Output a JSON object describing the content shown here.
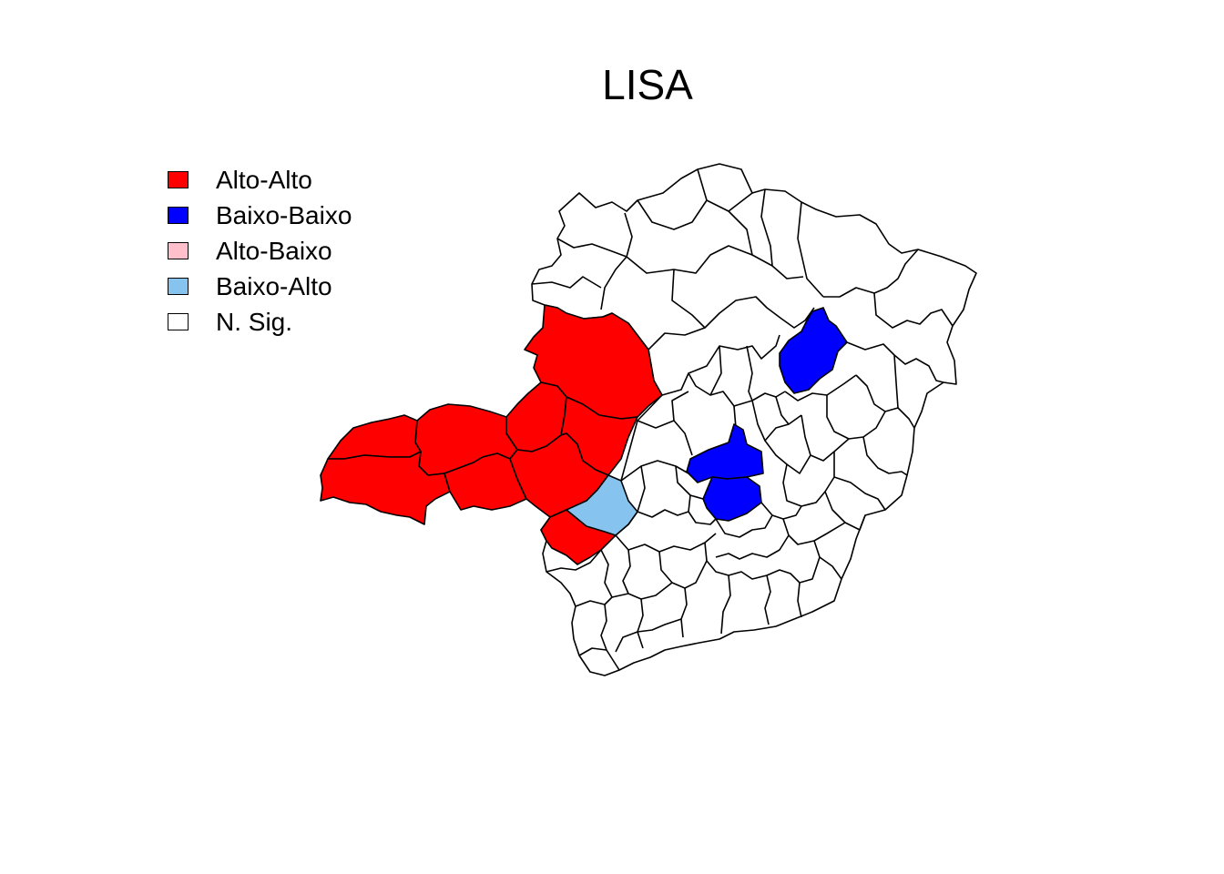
{
  "title": "LISA",
  "legend": [
    {
      "label": "Alto-Alto",
      "color": "#ff0000"
    },
    {
      "label": "Baixo-Baixo",
      "color": "#0000ff"
    },
    {
      "label": "Alto-Baixo",
      "color": "#ffc0cb"
    },
    {
      "label": "Baixo-Alto",
      "color": "#87c3ef"
    },
    {
      "label": "N. Sig.",
      "color": "#ffffff"
    }
  ],
  "regions": [
    {
      "id": "r01",
      "class": "Alto-Alto"
    },
    {
      "id": "r02",
      "class": "Alto-Alto"
    },
    {
      "id": "r03",
      "class": "Alto-Alto"
    },
    {
      "id": "r04",
      "class": "Alto-Alto"
    },
    {
      "id": "r05",
      "class": "Alto-Alto"
    },
    {
      "id": "r06",
      "class": "Alto-Alto"
    },
    {
      "id": "r07",
      "class": "Alto-Alto"
    },
    {
      "id": "r08",
      "class": "Alto-Alto"
    },
    {
      "id": "r09",
      "class": "Alto-Alto"
    },
    {
      "id": "r10",
      "class": "Baixo-Alto"
    },
    {
      "id": "r11",
      "class": "Baixo-Baixo"
    },
    {
      "id": "r12",
      "class": "Baixo-Baixo"
    },
    {
      "id": "r13",
      "class": "Baixo-Baixo"
    }
  ]
}
